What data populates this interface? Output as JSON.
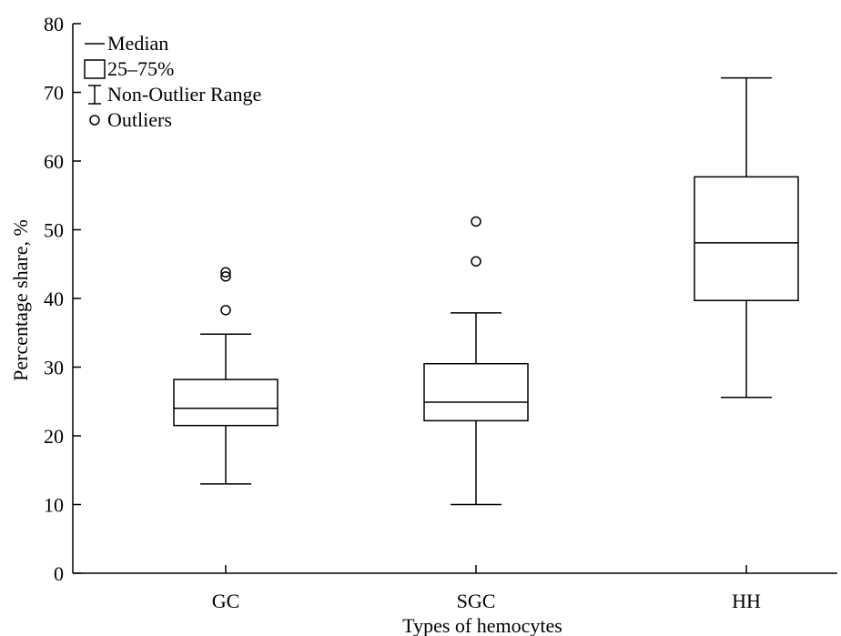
{
  "chart_data": {
    "type": "box",
    "xlabel": "Types of hemocytes",
    "ylabel": "Percentage share, %",
    "ylim": [
      0,
      80
    ],
    "yticks": [
      0,
      10,
      20,
      30,
      40,
      50,
      60,
      70,
      80
    ],
    "grid": false,
    "legend_position": "top-left",
    "legend": [
      {
        "symbol": "median",
        "label": "Median"
      },
      {
        "symbol": "box",
        "label": "25–75%"
      },
      {
        "symbol": "whisker",
        "label": "Non-Outlier Range"
      },
      {
        "symbol": "outlier",
        "label": "Outliers"
      }
    ],
    "categories": [
      "GC",
      "SGC",
      "HH"
    ],
    "boxes": [
      {
        "category": "GC",
        "whisker_low": 13,
        "q1": 21.5,
        "median": 24,
        "q3": 28.2,
        "whisker_high": 34.8,
        "outliers": [
          38.3,
          43.2,
          43.8
        ]
      },
      {
        "category": "SGC",
        "whisker_low": 10,
        "q1": 22.2,
        "median": 24.9,
        "q3": 30.5,
        "whisker_high": 37.9,
        "outliers": [
          45.4,
          51.2
        ]
      },
      {
        "category": "HH",
        "whisker_low": 25.6,
        "q1": 39.7,
        "median": 48.1,
        "q3": 57.7,
        "whisker_high": 72.1,
        "outliers": []
      }
    ]
  }
}
